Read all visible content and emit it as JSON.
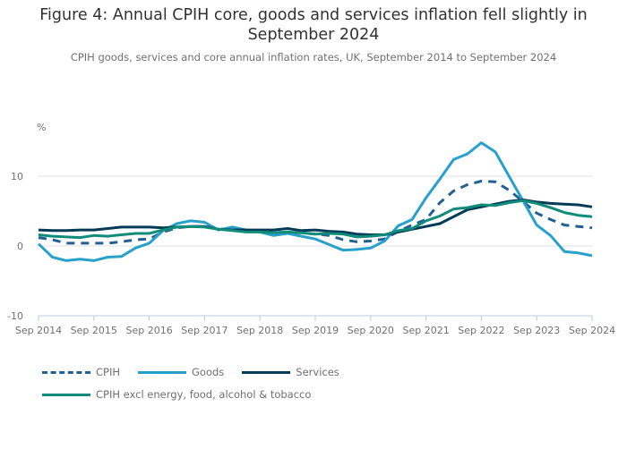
{
  "chart_data": {
    "type": "line",
    "title": "Figure 4: Annual CPIH core, goods and services inflation fell slightly in September 2024",
    "subtitle": "CPIH goods, services and core annual inflation rates, UK, September 2014 to September 2024",
    "ylabel": "%",
    "xlabel": "",
    "ylim": [
      -10,
      15
    ],
    "yticks": [
      -10,
      0,
      10
    ],
    "ytick_labels": [
      "-10",
      "0",
      "10"
    ],
    "grid": true,
    "legend_position": "bottom-left",
    "x_ticks": [
      "Sep 2014",
      "Sep 2015",
      "Sep 2016",
      "Sep 2017",
      "Sep 2018",
      "Sep 2019",
      "Sep 2020",
      "Sep 2021",
      "Sep 2022",
      "Sep 2023",
      "Sep 2024"
    ],
    "x_note": "x values are years since Sep 2014, sampled quarterly",
    "x": [
      0,
      0.25,
      0.5,
      0.75,
      1,
      1.25,
      1.5,
      1.75,
      2,
      2.25,
      2.5,
      2.75,
      3,
      3.25,
      3.5,
      3.75,
      4,
      4.25,
      4.5,
      4.75,
      5,
      5.25,
      5.5,
      5.75,
      6,
      6.25,
      6.5,
      6.75,
      7,
      7.25,
      7.5,
      7.75,
      8,
      8.25,
      8.5,
      8.75,
      9,
      9.25,
      9.5,
      9.75,
      10
    ],
    "series": [
      {
        "name": "CPIH",
        "color": "#206095",
        "dash": true,
        "values": [
          1.2,
          0.9,
          0.4,
          0.4,
          0.4,
          0.4,
          0.6,
          0.9,
          1.0,
          2.0,
          2.6,
          2.8,
          2.8,
          2.5,
          2.3,
          2.2,
          2.2,
          2.0,
          1.9,
          1.9,
          1.7,
          1.5,
          0.9,
          0.6,
          0.7,
          1.0,
          2.1,
          3.0,
          3.8,
          6.2,
          7.9,
          8.8,
          9.3,
          9.2,
          8.0,
          6.4,
          4.7,
          3.8,
          3.0,
          2.8,
          2.6
        ]
      },
      {
        "name": "Goods",
        "color": "#27a0cc",
        "dash": false,
        "values": [
          0.3,
          -1.6,
          -2.1,
          -1.9,
          -2.1,
          -1.6,
          -1.5,
          -0.3,
          0.4,
          2.2,
          3.2,
          3.6,
          3.4,
          2.3,
          2.7,
          2.3,
          2.0,
          1.5,
          1.8,
          1.4,
          1.0,
          0.2,
          -0.6,
          -0.5,
          -0.3,
          0.7,
          2.9,
          3.8,
          6.9,
          9.6,
          12.4,
          13.2,
          14.8,
          13.5,
          10.0,
          6.5,
          3.0,
          1.5,
          -0.8,
          -1.0,
          -1.4
        ]
      },
      {
        "name": "Services",
        "color": "#003c57",
        "dash": false,
        "values": [
          2.3,
          2.2,
          2.2,
          2.3,
          2.3,
          2.5,
          2.7,
          2.7,
          2.7,
          2.6,
          2.7,
          2.8,
          2.8,
          2.4,
          2.3,
          2.3,
          2.3,
          2.3,
          2.5,
          2.2,
          2.3,
          2.1,
          2.0,
          1.7,
          1.6,
          1.6,
          2.0,
          2.4,
          2.8,
          3.2,
          4.2,
          5.2,
          5.6,
          6.0,
          6.4,
          6.6,
          6.3,
          6.1,
          6.0,
          5.9,
          5.6
        ]
      },
      {
        "name": "CPIH excl energy, food, alcohol & tobacco",
        "color": "#118c7b",
        "dash": false,
        "values": [
          1.6,
          1.4,
          1.3,
          1.2,
          1.5,
          1.4,
          1.6,
          1.8,
          1.8,
          2.3,
          2.7,
          2.8,
          2.7,
          2.4,
          2.2,
          2.0,
          2.0,
          1.9,
          2.0,
          1.9,
          1.7,
          1.8,
          1.7,
          1.3,
          1.4,
          1.6,
          2.2,
          2.5,
          3.6,
          4.3,
          5.3,
          5.5,
          5.9,
          5.8,
          6.2,
          6.5,
          6.1,
          5.5,
          4.8,
          4.4,
          4.2
        ]
      }
    ]
  }
}
